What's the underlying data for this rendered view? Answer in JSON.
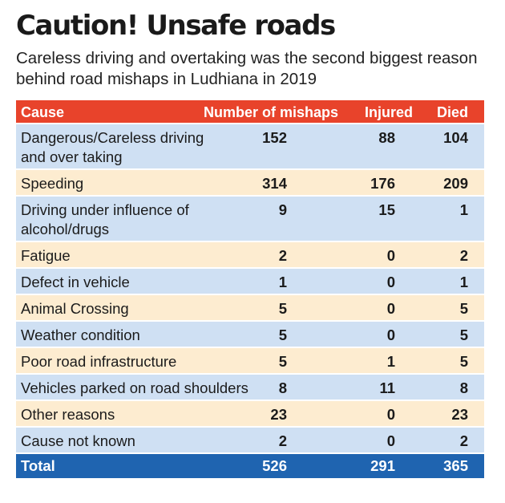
{
  "title": "Caution! Unsafe roads",
  "subtitle": "Careless driving and overtaking was the second biggest reason behind road mishaps in Ludhiana in 2019",
  "colors": {
    "header": "#e8432b",
    "row_blue": "#cfe0f3",
    "row_cream": "#fdecd0",
    "total": "#1f64b0"
  },
  "chart_data": {
    "type": "table",
    "title": "Caution! Unsafe roads",
    "subtitle": "Careless driving and overtaking was the second biggest reason behind road mishaps in Ludhiana in 2019",
    "columns": [
      "Cause",
      "Number of mishaps",
      "Injured",
      "Died"
    ],
    "rows": [
      {
        "cause": "Dangerous/Careless driving and over taking",
        "mishaps": "152",
        "injured": "88",
        "died": "104"
      },
      {
        "cause": "Speeding",
        "mishaps": "314",
        "injured": "176",
        "died": "209"
      },
      {
        "cause": "Driving under influence of alcohol/drugs",
        "mishaps": "9",
        "injured": "15",
        "died": "1"
      },
      {
        "cause": "Fatigue",
        "mishaps": "2",
        "injured": "0",
        "died": "2"
      },
      {
        "cause": "Defect in vehicle",
        "mishaps": "1",
        "injured": "0",
        "died": "1"
      },
      {
        "cause": "Animal Crossing",
        "mishaps": "5",
        "injured": "0",
        "died": "5"
      },
      {
        "cause": "Weather condition",
        "mishaps": "5",
        "injured": "0",
        "died": "5"
      },
      {
        "cause": "Poor road infrastructure",
        "mishaps": "5",
        "injured": "1",
        "died": "5"
      },
      {
        "cause": "Vehicles parked on road shoulders",
        "mishaps": "8",
        "injured": "11",
        "died": "8"
      },
      {
        "cause": "Other reasons",
        "mishaps": "23",
        "injured": "0",
        "died": "23"
      },
      {
        "cause": "Cause not known",
        "mishaps": "2",
        "injured": "0",
        "died": "2"
      }
    ],
    "total": {
      "cause": "Total",
      "mishaps": "526",
      "injured": "291",
      "died": "365"
    }
  }
}
